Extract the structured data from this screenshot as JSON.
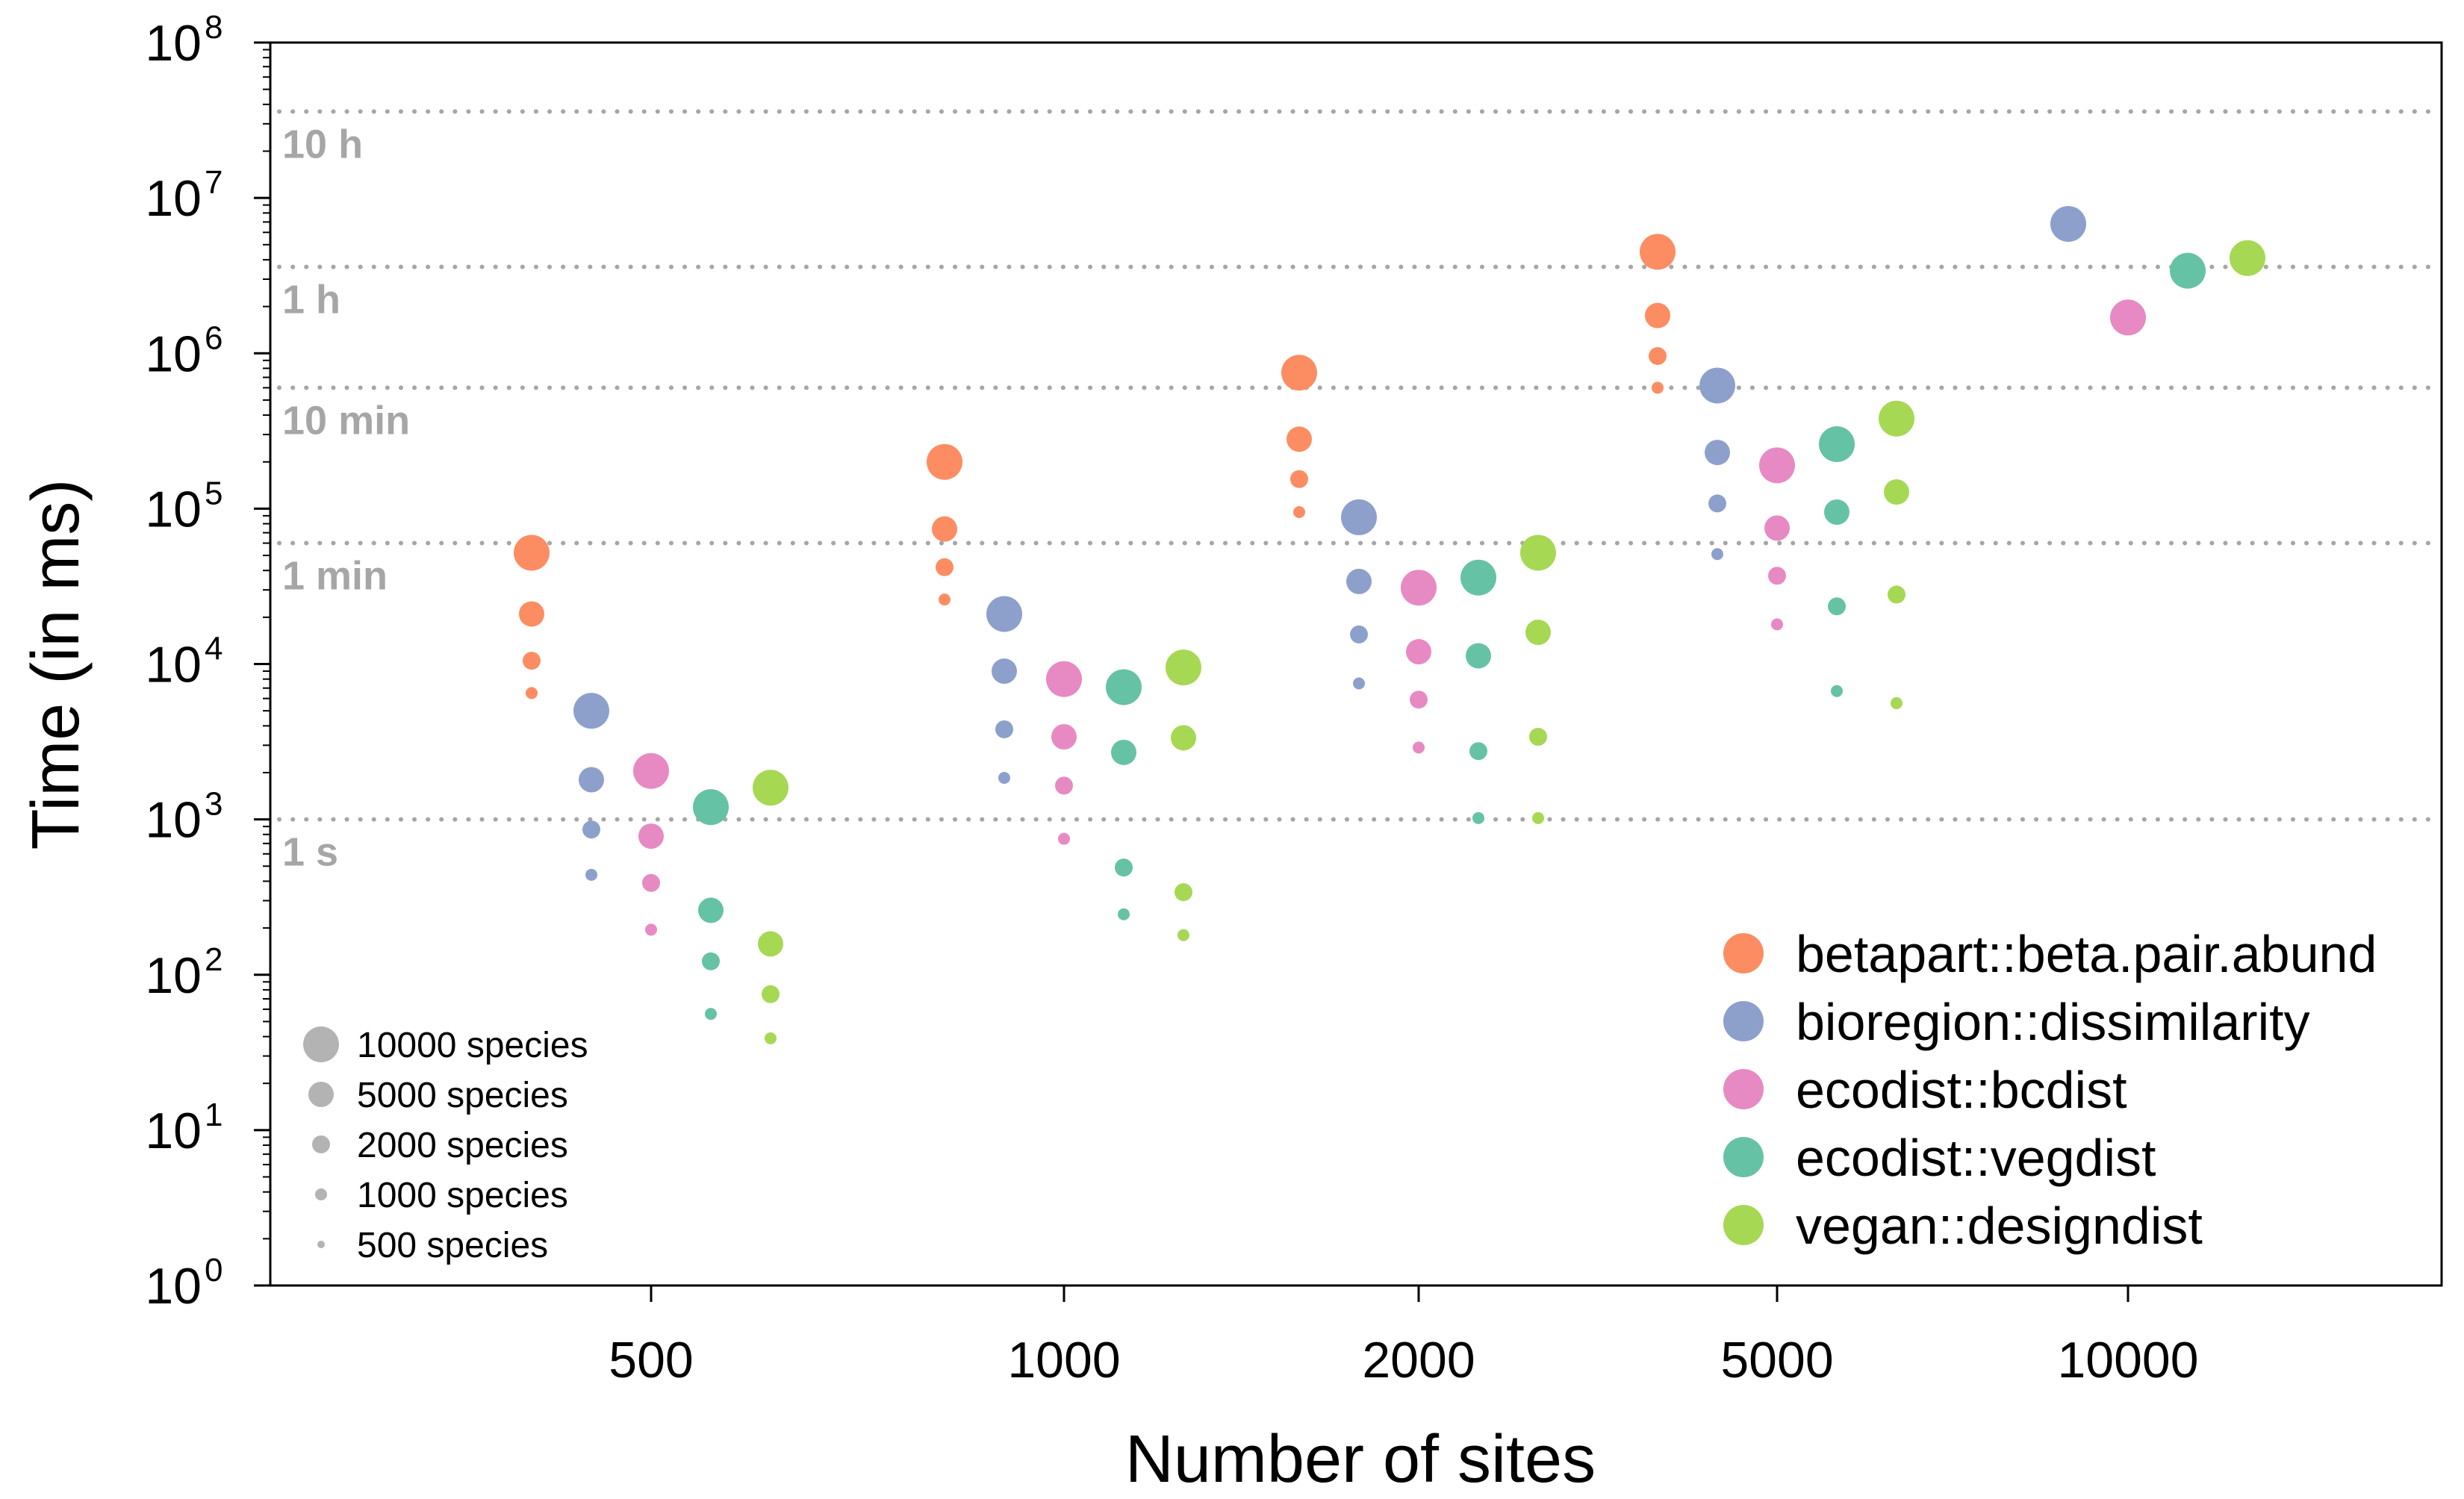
{
  "chart_data": {
    "type": "scatter",
    "xlabel": "Number of sites",
    "ylabel": "Time (in ms)",
    "y_scale": "log10",
    "ylim": [
      1,
      100000000
    ],
    "y_tick_base": "10",
    "y_tick_exponents": [
      "0",
      "1",
      "2",
      "3",
      "4",
      "5",
      "6",
      "7",
      "8"
    ],
    "x_groups": [
      "500",
      "1000",
      "2000",
      "5000",
      "10000"
    ],
    "reference_lines": [
      {
        "label": "1 s",
        "value": 1000
      },
      {
        "label": "1 min",
        "value": 60000
      },
      {
        "label": "10 min",
        "value": 600000
      },
      {
        "label": "1 h",
        "value": 3600000
      },
      {
        "label": "10 h",
        "value": 36000000
      }
    ],
    "legend_position": "bottom-right",
    "size_legend_position": "bottom-left",
    "species_levels": [
      {
        "label": "10000 species",
        "species": 10000
      },
      {
        "label": "5000 species",
        "species": 5000
      },
      {
        "label": "2000 species",
        "species": 2000
      },
      {
        "label": "1000 species",
        "species": 1000
      },
      {
        "label": "500 species",
        "species": 500
      }
    ],
    "series": [
      {
        "name": "betapart::beta.pair.abund",
        "color": "#fc8d62",
        "points": [
          {
            "sites": 500,
            "species": 10000,
            "time_ms": 52000
          },
          {
            "sites": 500,
            "species": 5000,
            "time_ms": 21000
          },
          {
            "sites": 500,
            "species": 2000,
            "time_ms": 10500
          },
          {
            "sites": 500,
            "species": 1000,
            "time_ms": 6500
          },
          {
            "sites": 1000,
            "species": 10000,
            "time_ms": 200000
          },
          {
            "sites": 1000,
            "species": 5000,
            "time_ms": 74000
          },
          {
            "sites": 1000,
            "species": 2000,
            "time_ms": 42000
          },
          {
            "sites": 1000,
            "species": 1000,
            "time_ms": 26000
          },
          {
            "sites": 2000,
            "species": 10000,
            "time_ms": 750000
          },
          {
            "sites": 2000,
            "species": 5000,
            "time_ms": 280000
          },
          {
            "sites": 2000,
            "species": 2000,
            "time_ms": 155000
          },
          {
            "sites": 2000,
            "species": 1000,
            "time_ms": 95000
          },
          {
            "sites": 5000,
            "species": 10000,
            "time_ms": 4500000
          },
          {
            "sites": 5000,
            "species": 5000,
            "time_ms": 1750000
          },
          {
            "sites": 5000,
            "species": 2000,
            "time_ms": 960000
          },
          {
            "sites": 5000,
            "species": 1000,
            "time_ms": 600000
          }
        ]
      },
      {
        "name": "bioregion::dissimilarity",
        "color": "#8da0cb",
        "points": [
          {
            "sites": 500,
            "species": 10000,
            "time_ms": 5000
          },
          {
            "sites": 500,
            "species": 5000,
            "time_ms": 1800
          },
          {
            "sites": 500,
            "species": 2000,
            "time_ms": 860
          },
          {
            "sites": 500,
            "species": 1000,
            "time_ms": 440
          },
          {
            "sites": 1000,
            "species": 10000,
            "time_ms": 21000
          },
          {
            "sites": 1000,
            "species": 5000,
            "time_ms": 9000
          },
          {
            "sites": 1000,
            "species": 2000,
            "time_ms": 3800
          },
          {
            "sites": 1000,
            "species": 1000,
            "time_ms": 1850
          },
          {
            "sites": 2000,
            "species": 10000,
            "time_ms": 88000
          },
          {
            "sites": 2000,
            "species": 5000,
            "time_ms": 34000
          },
          {
            "sites": 2000,
            "species": 2000,
            "time_ms": 15500
          },
          {
            "sites": 2000,
            "species": 1000,
            "time_ms": 7500
          },
          {
            "sites": 5000,
            "species": 10000,
            "time_ms": 620000
          },
          {
            "sites": 5000,
            "species": 5000,
            "time_ms": 230000
          },
          {
            "sites": 5000,
            "species": 2000,
            "time_ms": 108000
          },
          {
            "sites": 5000,
            "species": 1000,
            "time_ms": 51000
          },
          {
            "sites": 10000,
            "species": 10000,
            "time_ms": 6800000
          }
        ]
      },
      {
        "name": "ecodist::bcdist",
        "color": "#e78ac3",
        "points": [
          {
            "sites": 500,
            "species": 10000,
            "time_ms": 2050
          },
          {
            "sites": 500,
            "species": 5000,
            "time_ms": 780
          },
          {
            "sites": 500,
            "species": 2000,
            "time_ms": 390
          },
          {
            "sites": 500,
            "species": 1000,
            "time_ms": 195
          },
          {
            "sites": 1000,
            "species": 10000,
            "time_ms": 8000
          },
          {
            "sites": 1000,
            "species": 5000,
            "time_ms": 3400
          },
          {
            "sites": 1000,
            "species": 2000,
            "time_ms": 1650
          },
          {
            "sites": 1000,
            "species": 1000,
            "time_ms": 750
          },
          {
            "sites": 2000,
            "species": 10000,
            "time_ms": 31000
          },
          {
            "sites": 2000,
            "species": 5000,
            "time_ms": 12000
          },
          {
            "sites": 2000,
            "species": 2000,
            "time_ms": 5900
          },
          {
            "sites": 2000,
            "species": 1000,
            "time_ms": 2900
          },
          {
            "sites": 5000,
            "species": 10000,
            "time_ms": 190000
          },
          {
            "sites": 5000,
            "species": 5000,
            "time_ms": 75000
          },
          {
            "sites": 5000,
            "species": 2000,
            "time_ms": 37000
          },
          {
            "sites": 5000,
            "species": 1000,
            "time_ms": 18000
          },
          {
            "sites": 10000,
            "species": 10000,
            "time_ms": 1700000
          }
        ]
      },
      {
        "name": "ecodist::vegdist",
        "color": "#66c2a5",
        "points": [
          {
            "sites": 500,
            "species": 10000,
            "time_ms": 1200
          },
          {
            "sites": 500,
            "species": 5000,
            "time_ms": 260
          },
          {
            "sites": 500,
            "species": 2000,
            "time_ms": 122
          },
          {
            "sites": 500,
            "species": 1000,
            "time_ms": 56
          },
          {
            "sites": 1000,
            "species": 10000,
            "time_ms": 7100
          },
          {
            "sites": 1000,
            "species": 5000,
            "time_ms": 2700
          },
          {
            "sites": 1000,
            "species": 2000,
            "time_ms": 490
          },
          {
            "sites": 1000,
            "species": 1000,
            "time_ms": 245
          },
          {
            "sites": 2000,
            "species": 10000,
            "time_ms": 36000
          },
          {
            "sites": 2000,
            "species": 5000,
            "time_ms": 11300
          },
          {
            "sites": 2000,
            "species": 2000,
            "time_ms": 2750
          },
          {
            "sites": 2000,
            "species": 1000,
            "time_ms": 1020
          },
          {
            "sites": 5000,
            "species": 10000,
            "time_ms": 260000
          },
          {
            "sites": 5000,
            "species": 5000,
            "time_ms": 95000
          },
          {
            "sites": 5000,
            "species": 2000,
            "time_ms": 23500
          },
          {
            "sites": 5000,
            "species": 1000,
            "time_ms": 6700
          },
          {
            "sites": 10000,
            "species": 10000,
            "time_ms": 3400000
          }
        ]
      },
      {
        "name": "vegan::designdist",
        "color": "#a6d854",
        "points": [
          {
            "sites": 500,
            "species": 10000,
            "time_ms": 1600
          },
          {
            "sites": 500,
            "species": 5000,
            "time_ms": 158
          },
          {
            "sites": 500,
            "species": 2000,
            "time_ms": 75
          },
          {
            "sites": 500,
            "species": 1000,
            "time_ms": 39
          },
          {
            "sites": 1000,
            "species": 10000,
            "time_ms": 9500
          },
          {
            "sites": 1000,
            "species": 5000,
            "time_ms": 3350
          },
          {
            "sites": 1000,
            "species": 2000,
            "time_ms": 340
          },
          {
            "sites": 1000,
            "species": 1000,
            "time_ms": 180
          },
          {
            "sites": 2000,
            "species": 10000,
            "time_ms": 52000
          },
          {
            "sites": 2000,
            "species": 5000,
            "time_ms": 16000
          },
          {
            "sites": 2000,
            "species": 2000,
            "time_ms": 3400
          },
          {
            "sites": 2000,
            "species": 1000,
            "time_ms": 1020
          },
          {
            "sites": 5000,
            "species": 10000,
            "time_ms": 380000
          },
          {
            "sites": 5000,
            "species": 5000,
            "time_ms": 128000
          },
          {
            "sites": 5000,
            "species": 2000,
            "time_ms": 28000
          },
          {
            "sites": 5000,
            "species": 1000,
            "time_ms": 5600
          },
          {
            "sites": 10000,
            "species": 10000,
            "time_ms": 4100000
          }
        ]
      }
    ]
  }
}
